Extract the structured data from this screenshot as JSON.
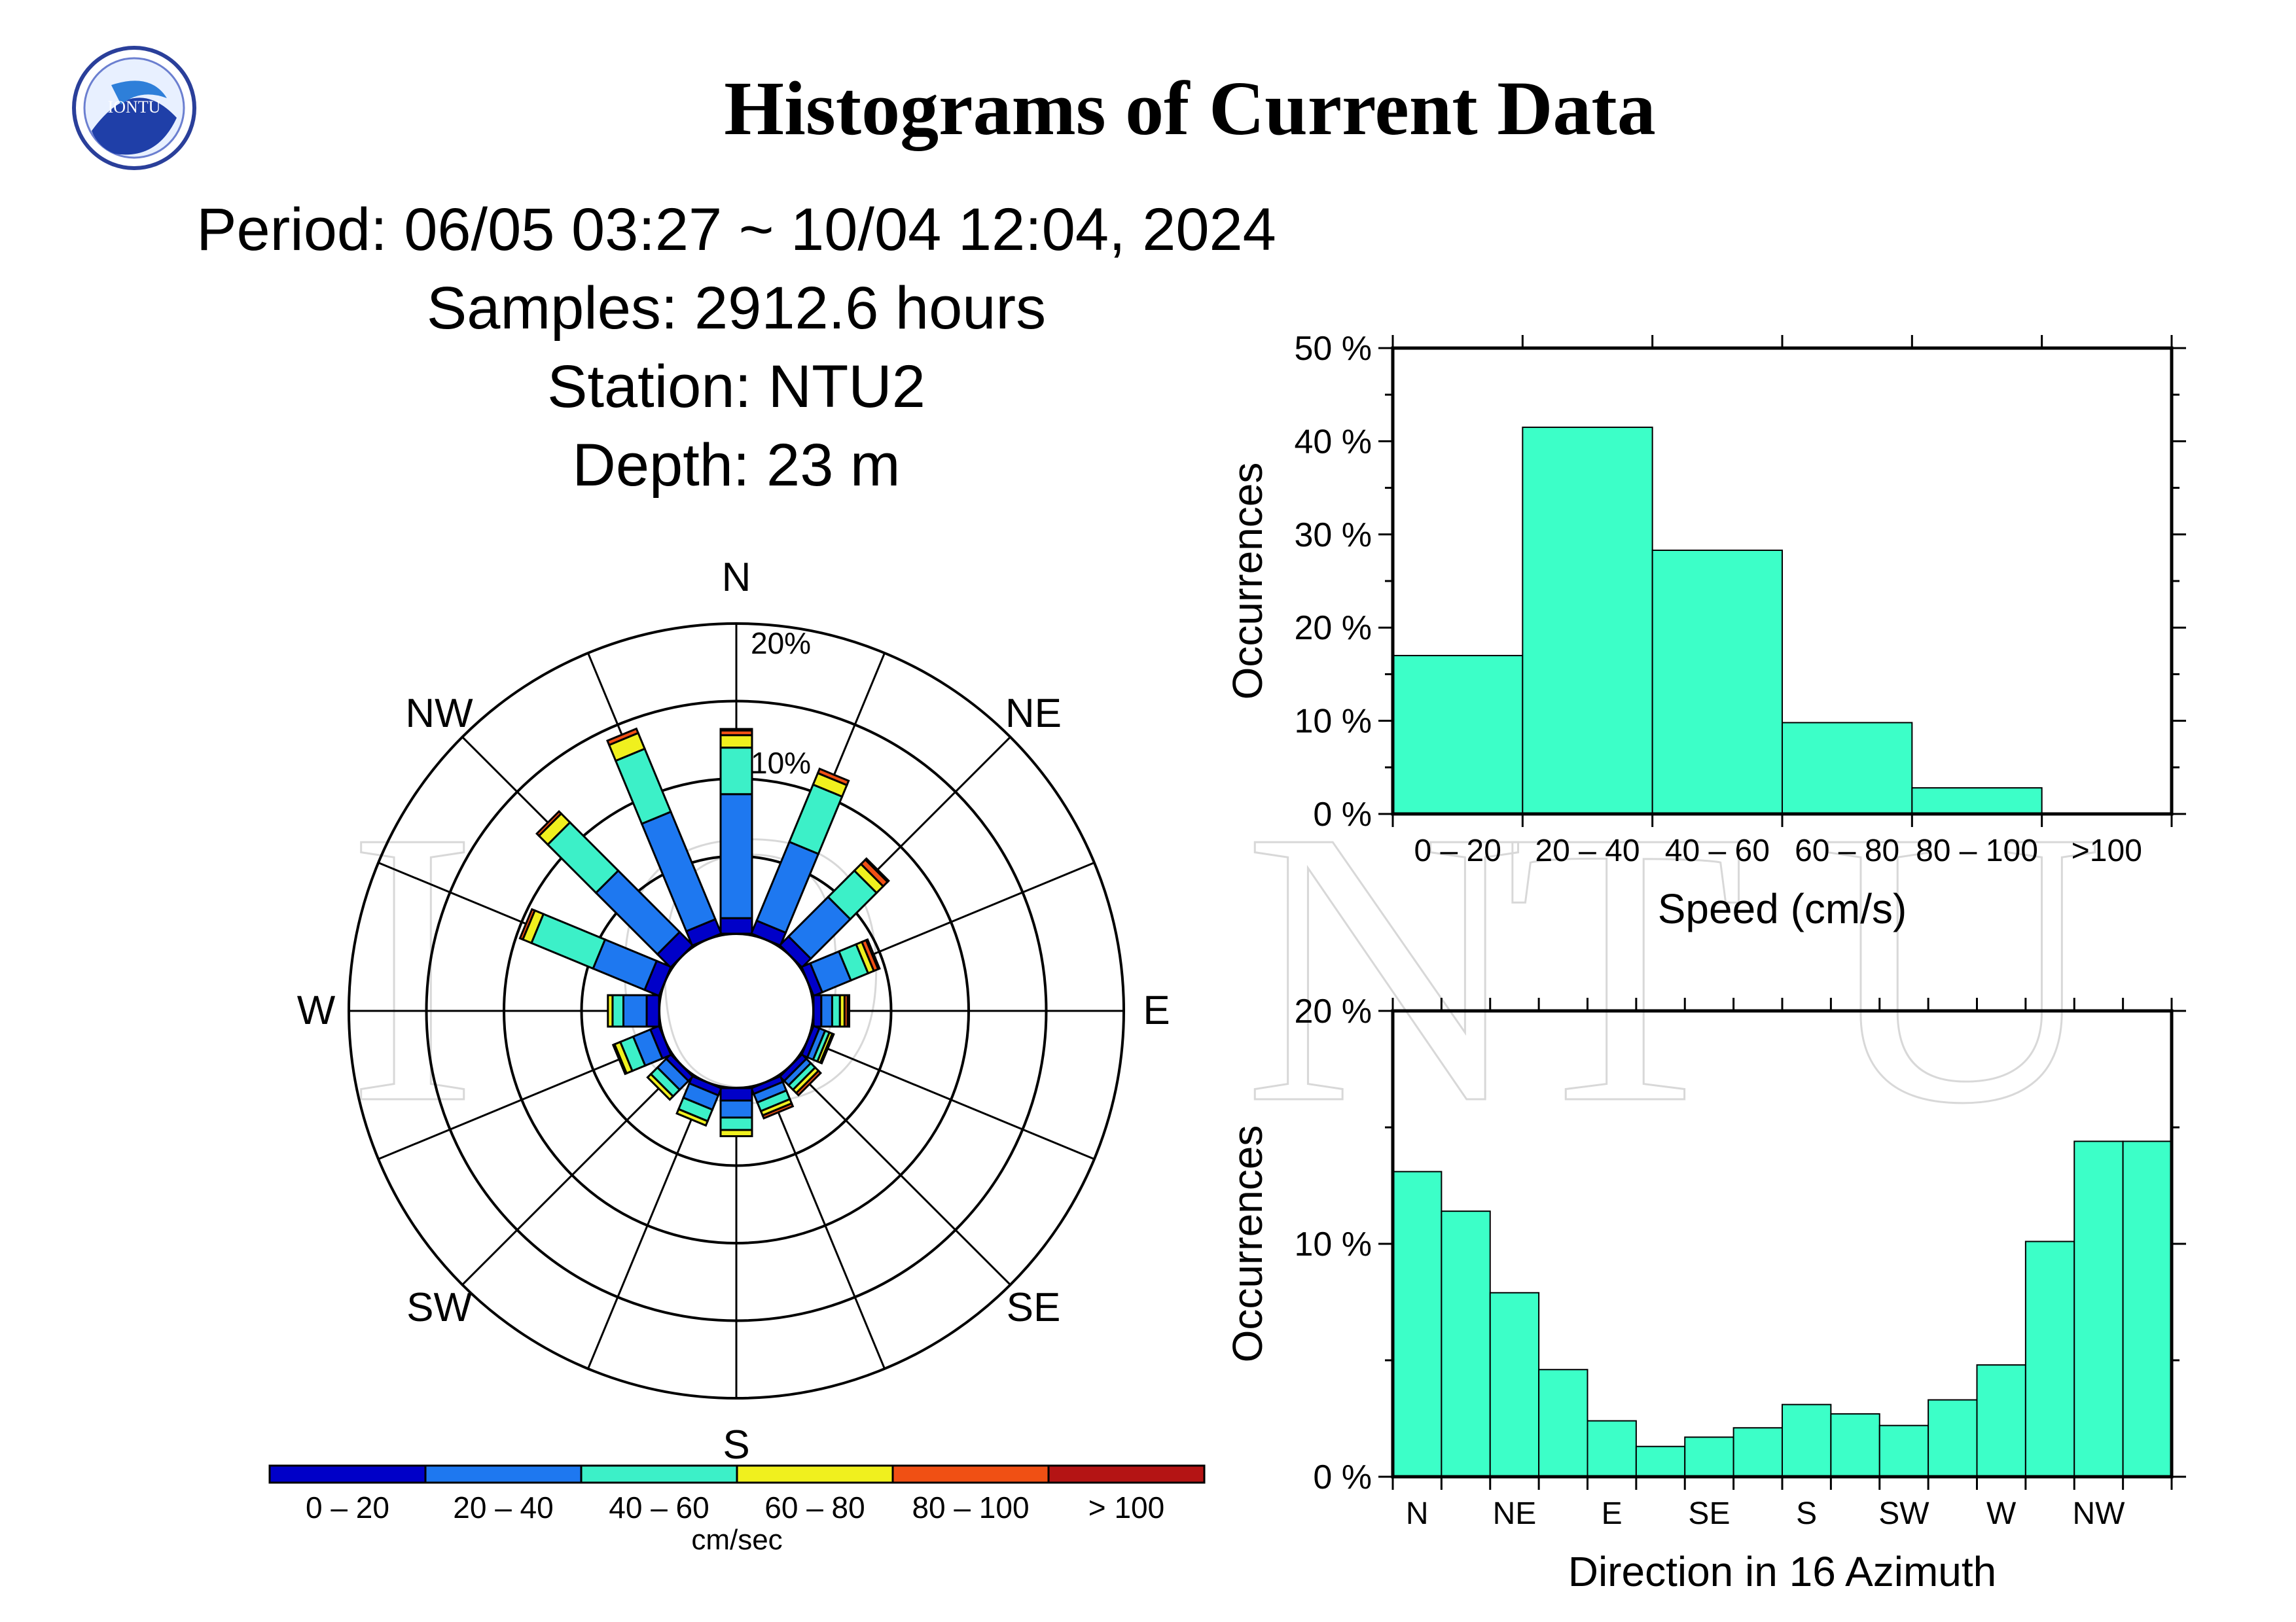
{
  "header": {
    "title": "Histograms of Current Data",
    "logo_text": "IONTU",
    "period": "Period: 06/05 03:27 ~ 10/04 12:04, 2024",
    "samples": "Samples: 2912.6 hours",
    "station": "Station: NTU2",
    "depth": "Depth: 23 m",
    "watermark": "IONTU"
  },
  "rose": {
    "directions": [
      "N",
      "NE",
      "E",
      "SE",
      "S",
      "SW",
      "W",
      "NW"
    ],
    "ring_labels": [
      "10%",
      "20%"
    ],
    "legend_unit": "cm/sec"
  },
  "colors": {
    "speed_bins": [
      "#0000c8",
      "#1e78f0",
      "#3cf0c8",
      "#f0f01e",
      "#f05014",
      "#b41414"
    ],
    "histogram_fill": "#3cffc8"
  },
  "chart_data": [
    {
      "type": "rose",
      "title": "",
      "directions": [
        "N",
        "NNE",
        "NE",
        "ENE",
        "E",
        "ESE",
        "SE",
        "SSE",
        "S",
        "SSW",
        "SW",
        "WSW",
        "W",
        "WNW",
        "NW",
        "NNW"
      ],
      "speed_bins": [
        "0 – 20",
        "20 – 40",
        "40 – 60",
        "60 – 80",
        "80 – 100",
        "> 100"
      ],
      "max_percent": 20,
      "series": [
        [
          1.0,
          8.0,
          3.0,
          0.8,
          0.3,
          0.1
        ],
        [
          0.9,
          5.5,
          4.0,
          0.8,
          0.3,
          0.0
        ],
        [
          0.8,
          3.6,
          2.4,
          0.6,
          0.4,
          0.1
        ],
        [
          0.6,
          2.0,
          1.2,
          0.4,
          0.3,
          0.1
        ],
        [
          0.5,
          0.7,
          0.5,
          0.3,
          0.2,
          0.1
        ],
        [
          0.4,
          0.4,
          0.3,
          0.2,
          0.1,
          0.0
        ],
        [
          0.4,
          0.4,
          0.4,
          0.3,
          0.2,
          0.0
        ],
        [
          0.4,
          0.6,
          0.6,
          0.3,
          0.2,
          0.0
        ],
        [
          0.8,
          1.1,
          0.8,
          0.4,
          0.0,
          0.0
        ],
        [
          0.5,
          1.0,
          0.8,
          0.3,
          0.0,
          0.0
        ],
        [
          0.4,
          0.8,
          0.6,
          0.3,
          0.0,
          0.0
        ],
        [
          0.6,
          1.2,
          0.9,
          0.4,
          0.1,
          0.0
        ],
        [
          0.8,
          1.5,
          0.7,
          0.3,
          0.0,
          0.0
        ],
        [
          1.0,
          3.6,
          4.3,
          0.6,
          0.2,
          0.0
        ],
        [
          1.2,
          5.6,
          4.4,
          0.8,
          0.2,
          0.0
        ],
        [
          1.0,
          7.5,
          4.4,
          1.1,
          0.3,
          0.0
        ]
      ]
    },
    {
      "type": "bar",
      "title": "",
      "categories": [
        "0 – 20",
        "20 – 40",
        "40 – 60",
        "60 – 80",
        "80 – 100",
        ">100"
      ],
      "values": [
        17.0,
        41.5,
        28.3,
        9.8,
        2.8,
        0.0
      ],
      "xlabel": "Speed (cm/s)",
      "ylabel": "Occurrences",
      "ylim": [
        0,
        50
      ],
      "yticks": [
        "0 %",
        "10 %",
        "20 %",
        "30 %",
        "40 %",
        "50 %"
      ]
    },
    {
      "type": "bar",
      "title": "",
      "categories": [
        "N",
        "NNE",
        "NE",
        "ENE",
        "E",
        "ESE",
        "SE",
        "SSE",
        "S",
        "SSW",
        "SW",
        "WSW",
        "W",
        "WNW",
        "NW",
        "NNW"
      ],
      "tick_labels": [
        "N",
        "NE",
        "E",
        "SE",
        "S",
        "SW",
        "W",
        "NW"
      ],
      "values": [
        13.1,
        11.4,
        7.9,
        4.6,
        2.4,
        1.3,
        1.7,
        2.1,
        3.1,
        2.7,
        2.2,
        3.3,
        4.8,
        10.1,
        14.4,
        14.4
      ],
      "xlabel": "Direction in 16 Azimuth",
      "ylabel": "Occurrences",
      "ylim": [
        0,
        20
      ],
      "yticks": [
        "0 %",
        "10 %",
        "20 %"
      ]
    }
  ]
}
